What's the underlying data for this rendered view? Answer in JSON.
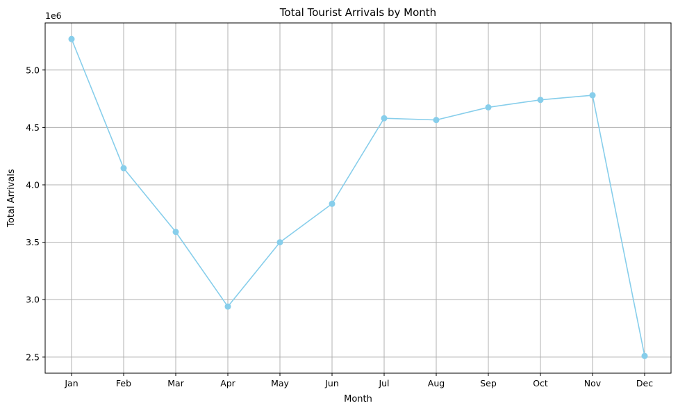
{
  "chart_data": {
    "type": "line",
    "title": "Total Tourist Arrivals by Month",
    "xlabel": "Month",
    "ylabel": "Total Arrivals",
    "y_offset_label": "1e6",
    "categories": [
      "Jan",
      "Feb",
      "Mar",
      "Apr",
      "May",
      "Jun",
      "Jul",
      "Aug",
      "Sep",
      "Oct",
      "Nov",
      "Dec"
    ],
    "series": [
      {
        "values": [
          5270000,
          4145000,
          3590000,
          2940000,
          3500000,
          3835000,
          4580000,
          4565000,
          4675000,
          4740000,
          4780000,
          2510000
        ],
        "color": "#87ceeb"
      }
    ],
    "ylim": [
      2360000,
      5410000
    ],
    "yticks": [
      2500000,
      3000000,
      3500000,
      4000000,
      4500000,
      5000000
    ],
    "ytick_labels": [
      "2.5",
      "3.0",
      "3.5",
      "4.0",
      "4.5",
      "5.0"
    ],
    "grid": true,
    "grid_color": "#b0b0b0",
    "legend": "none"
  }
}
